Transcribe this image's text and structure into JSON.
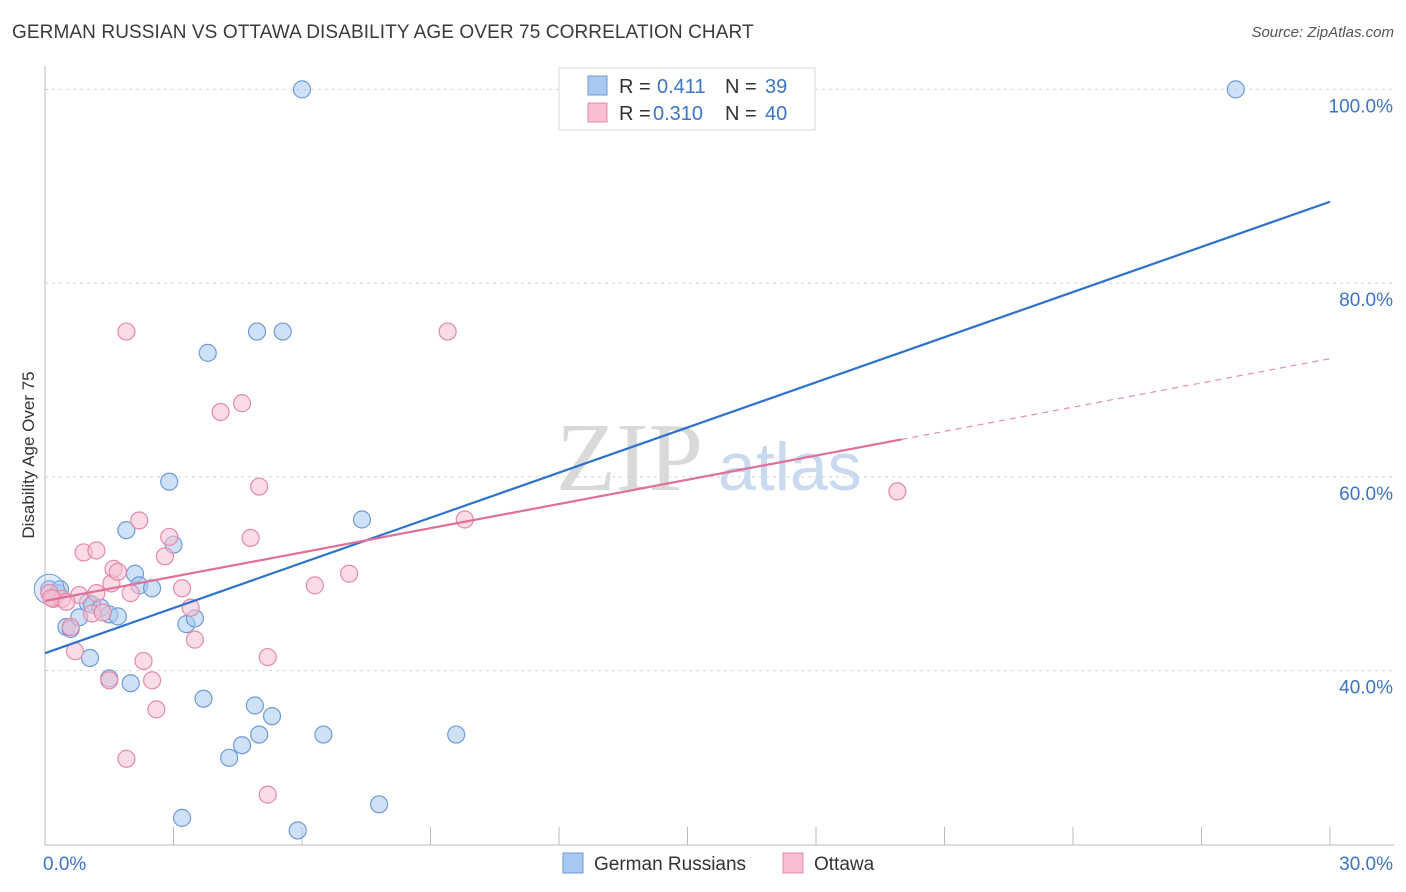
{
  "title": "GERMAN RUSSIAN VS OTTAWA DISABILITY AGE OVER 75 CORRELATION CHART",
  "source": "Source: ZipAtlas.com",
  "watermark": {
    "zip": "ZIP",
    "atlas": "atlas"
  },
  "colors": {
    "blue_fill": "#a8c8f0",
    "blue_stroke": "#6f9ad8",
    "blue_line": "#2f72cc",
    "pink_fill": "#f7bfd0",
    "pink_stroke": "#e48aa8",
    "pink_line": "#e0709a",
    "axis_text": "#3d74c6",
    "grid": "#d5d5d5"
  },
  "legend": {
    "rows": [
      {
        "r_label": "R =",
        "r_value": "0.411",
        "n_label": "N =",
        "n_value": "39"
      },
      {
        "r_label": "R =",
        "r_value": "0.310",
        "n_label": "N =",
        "n_value": "40"
      }
    ]
  },
  "chart_data": {
    "type": "scatter",
    "title": "GERMAN RUSSIAN VS OTTAWA DISABILITY AGE OVER 75 CORRELATION CHART",
    "xlabel": "",
    "ylabel": "Disability Age Over 75",
    "xlim": [
      0,
      30
    ],
    "ylim": [
      22,
      102
    ],
    "x_tick_labels": [
      {
        "value": 0,
        "label": "0.0%"
      },
      {
        "value": 30,
        "label": "30.0%"
      }
    ],
    "y_tick_labels": [
      {
        "value": 40,
        "label": "40.0%"
      },
      {
        "value": 60,
        "label": "60.0%"
      },
      {
        "value": 80,
        "label": "80.0%"
      },
      {
        "value": 100,
        "label": "100.0%"
      }
    ],
    "y_gridlines": [
      40,
      60,
      80,
      100
    ],
    "x_minor_ticks": [
      3,
      6,
      9,
      12,
      15,
      18,
      21,
      24,
      27,
      30
    ],
    "series": [
      {
        "name": "German Russians",
        "color": "#a8c8f0",
        "trend": {
          "x0": 0,
          "y0": 41.8,
          "x1": 30,
          "y1": 88.4,
          "solid_until": 30
        },
        "points": [
          [
            0.1,
            48.4
          ],
          [
            0.3,
            48.0
          ],
          [
            0.35,
            48.4
          ],
          [
            0.5,
            44.5
          ],
          [
            0.6,
            44.3
          ],
          [
            0.8,
            45.5
          ],
          [
            1.0,
            47.0
          ],
          [
            1.1,
            46.8
          ],
          [
            1.3,
            46.5
          ],
          [
            1.5,
            45.8
          ],
          [
            1.7,
            45.6
          ],
          [
            1.05,
            41.3
          ],
          [
            1.5,
            39.2
          ],
          [
            2.0,
            38.7
          ],
          [
            1.9,
            54.5
          ],
          [
            2.1,
            50.0
          ],
          [
            2.2,
            48.8
          ],
          [
            2.5,
            48.5
          ],
          [
            2.9,
            59.5
          ],
          [
            3.0,
            53.0
          ],
          [
            3.3,
            44.8
          ],
          [
            3.5,
            45.4
          ],
          [
            3.7,
            37.1
          ],
          [
            3.8,
            72.8
          ],
          [
            3.2,
            24.8
          ],
          [
            4.6,
            32.3
          ],
          [
            4.3,
            31.0
          ],
          [
            4.9,
            36.4
          ],
          [
            5.0,
            33.4
          ],
          [
            4.95,
            75.0
          ],
          [
            5.55,
            75.0
          ],
          [
            5.3,
            35.3
          ],
          [
            6.0,
            100.0
          ],
          [
            6.5,
            33.4
          ],
          [
            5.9,
            23.5
          ],
          [
            7.4,
            55.6
          ],
          [
            7.8,
            26.2
          ],
          [
            9.6,
            33.4
          ],
          [
            27.8,
            100.0
          ]
        ]
      },
      {
        "name": "Ottawa",
        "color": "#f7bfd0",
        "trend": {
          "x0": 0,
          "y0": 47.2,
          "x1": 30,
          "y1": 72.2,
          "solid_until": 20
        },
        "points": [
          [
            0.1,
            48.0
          ],
          [
            0.2,
            47.4
          ],
          [
            0.4,
            47.4
          ],
          [
            0.6,
            44.5
          ],
          [
            0.7,
            42.0
          ],
          [
            0.8,
            47.8
          ],
          [
            0.9,
            52.2
          ],
          [
            1.2,
            48.0
          ],
          [
            1.2,
            52.4
          ],
          [
            1.5,
            39.0
          ],
          [
            1.55,
            49.0
          ],
          [
            1.6,
            50.5
          ],
          [
            1.7,
            50.2
          ],
          [
            1.9,
            75.0
          ],
          [
            1.9,
            30.9
          ],
          [
            2.0,
            48.0
          ],
          [
            2.2,
            55.5
          ],
          [
            2.3,
            41.0
          ],
          [
            2.5,
            39.0
          ],
          [
            2.6,
            36.0
          ],
          [
            2.8,
            51.8
          ],
          [
            2.9,
            53.8
          ],
          [
            3.2,
            48.5
          ],
          [
            3.4,
            46.5
          ],
          [
            3.5,
            43.2
          ],
          [
            4.1,
            66.7
          ],
          [
            4.6,
            67.6
          ],
          [
            4.8,
            53.7
          ],
          [
            5.0,
            59.0
          ],
          [
            5.2,
            41.4
          ],
          [
            5.2,
            27.2
          ],
          [
            6.3,
            48.8
          ],
          [
            7.1,
            50.0
          ],
          [
            9.4,
            75.0
          ],
          [
            9.8,
            55.6
          ],
          [
            19.9,
            58.5
          ],
          [
            0.15,
            47.5
          ],
          [
            1.1,
            45.9
          ],
          [
            0.5,
            47.1
          ],
          [
            1.35,
            46.0
          ]
        ]
      }
    ]
  },
  "bottom_legend": [
    "German Russians",
    "Ottawa"
  ]
}
